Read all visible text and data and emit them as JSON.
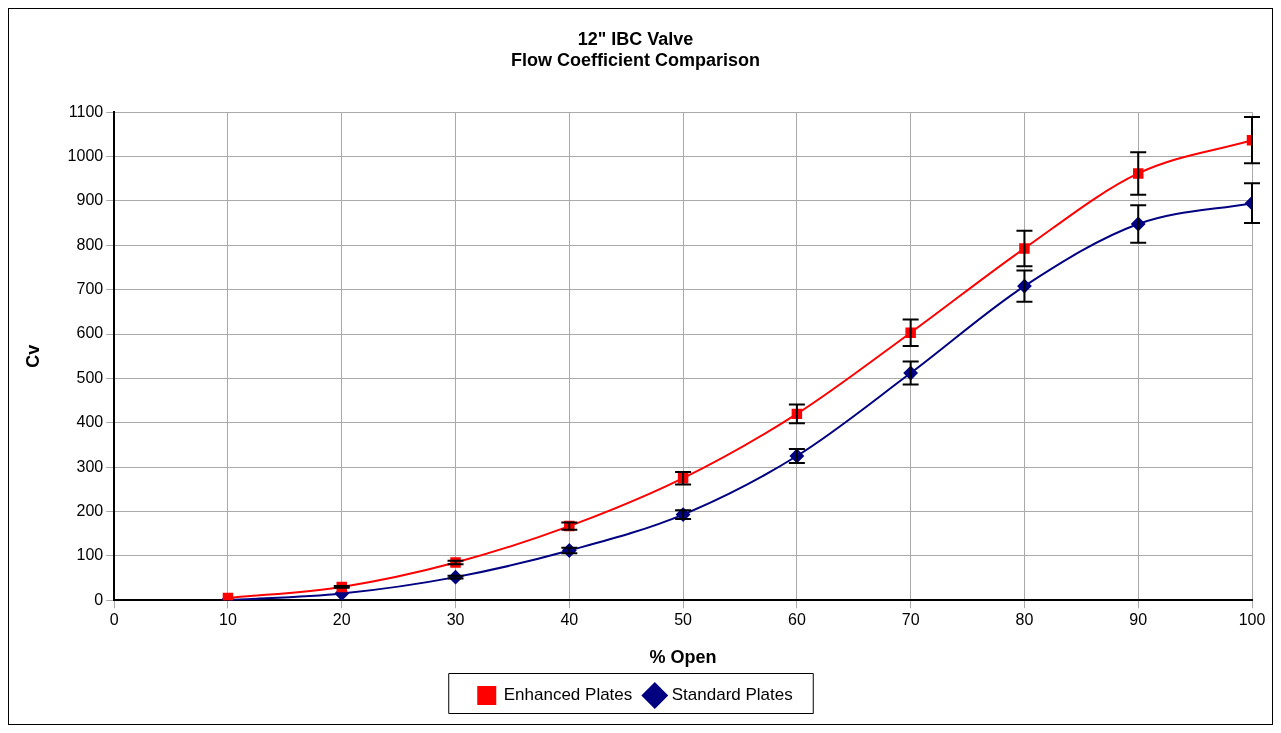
{
  "chart_data": {
    "type": "line",
    "title": [
      "12\" IBC Valve",
      "Flow Coefficient Comparison"
    ],
    "xlabel": "% Open",
    "ylabel": "Cv",
    "x": [
      10,
      20,
      30,
      40,
      50,
      60,
      70,
      80,
      90,
      100
    ],
    "series": [
      {
        "name": "Standard Plates",
        "color": "#000080",
        "marker": "diamond",
        "values": [
          0,
          15,
          52,
          112,
          193,
          325,
          512,
          708,
          848,
          895
        ],
        "errors": [
          null,
          null,
          3,
          6,
          10,
          16,
          26,
          35,
          42,
          45
        ]
      },
      {
        "name": "Enhanced Plates",
        "color": "#ff0000",
        "marker": "square",
        "values": [
          5,
          30,
          85,
          167,
          275,
          420,
          603,
          793,
          962,
          1037
        ],
        "errors": [
          null,
          2,
          4,
          8,
          14,
          21,
          30,
          40,
          48,
          52
        ]
      }
    ],
    "xlim": [
      0,
      100
    ],
    "xticks": [
      0,
      10,
      20,
      30,
      40,
      50,
      60,
      70,
      80,
      90,
      100
    ],
    "ylim": [
      0,
      1100
    ],
    "yticks": [
      0,
      100,
      200,
      300,
      400,
      500,
      600,
      700,
      800,
      900,
      1000,
      1100
    ],
    "grid": true,
    "legend": "bottom"
  }
}
